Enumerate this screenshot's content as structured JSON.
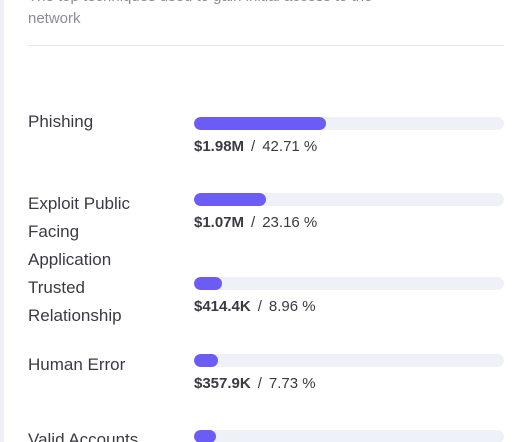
{
  "intro": {
    "line1": "The top techniques used to gain initial access to the",
    "line2": "network"
  },
  "techniques": [
    {
      "label_lines": [
        "Phishing"
      ],
      "amount": "$1.98M",
      "percent": "42.71 %",
      "share": 42.71
    },
    {
      "label_lines": [
        "Exploit Public",
        "Facing",
        "Application"
      ],
      "amount": "$1.07M",
      "percent": "23.16 %",
      "share": 23.16
    },
    {
      "label_lines": [
        "Trusted",
        "Relationship"
      ],
      "amount": "$414.4K",
      "percent": "8.96 %",
      "share": 8.96
    },
    {
      "label_lines": [
        "Human Error"
      ],
      "amount": "$357.9K",
      "percent": "7.73 %",
      "share": 7.73
    },
    {
      "label_lines": [
        "Valid Accounts"
      ],
      "amount": "",
      "percent": "",
      "share": 7.0
    }
  ],
  "separator": "/",
  "colors": {
    "bar_fill": "#6b5cf5",
    "bar_track": "#eef1f7"
  }
}
